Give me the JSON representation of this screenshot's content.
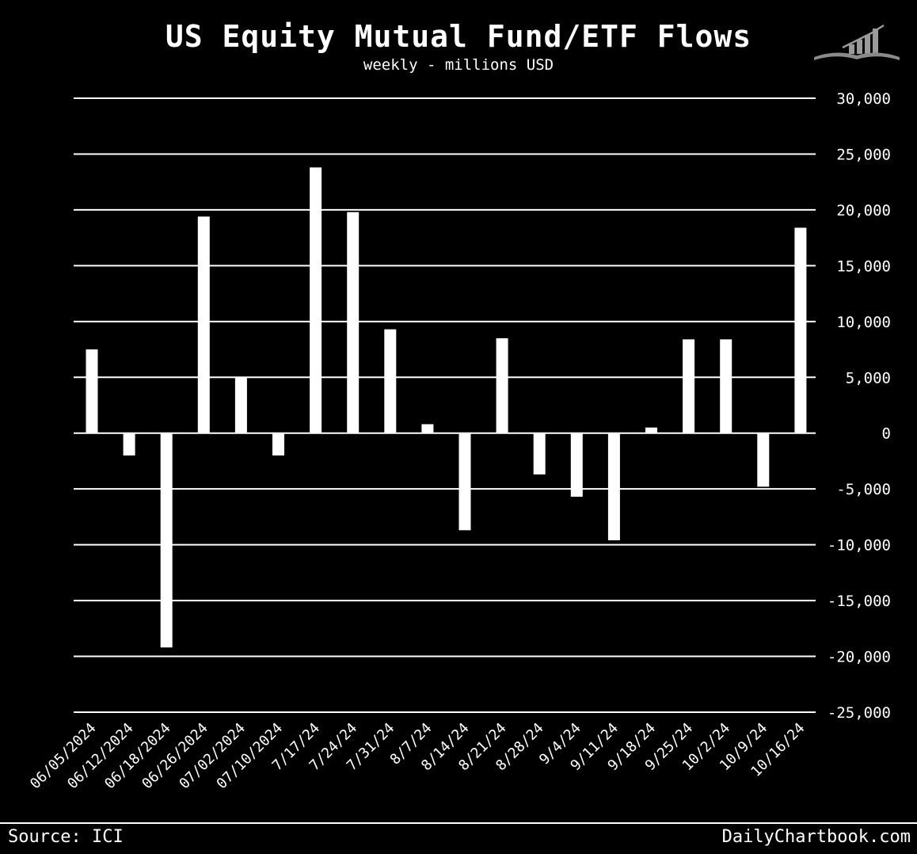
{
  "header": {
    "title": "US Equity Mutual Fund/ETF Flows",
    "subtitle": "weekly - millions USD"
  },
  "footer": {
    "source": "Source: ICI",
    "brand": "DailyChartbook.com"
  },
  "logo_icon": "bar-chart-book-icon",
  "colors": {
    "background": "#000000",
    "bars": "#ffffff",
    "grid": "#ffffff",
    "text": "#ffffff"
  },
  "chart_data": {
    "type": "bar",
    "title": "US Equity Mutual Fund/ETF Flows",
    "subtitle": "weekly - millions USD",
    "categories": [
      "06/05/2024",
      "06/12/2024",
      "06/18/2024",
      "06/26/2024",
      "07/02/2024",
      "07/10/2024",
      "7/17/24",
      "7/24/24",
      "7/31/24",
      "8/7/24",
      "8/14/24",
      "8/21/24",
      "8/28/24",
      "9/4/24",
      "9/11/24",
      "9/18/24",
      "9/25/24",
      "10/2/24",
      "10/9/24",
      "10/16/24"
    ],
    "values": [
      7500,
      -2000,
      -19200,
      19400,
      5000,
      -2000,
      23800,
      19800,
      9300,
      800,
      -8700,
      8500,
      -3700,
      -5700,
      -9600,
      500,
      8400,
      8400,
      -4800,
      18400
    ],
    "ylim": [
      -25000,
      30000
    ],
    "yticks": [
      30000,
      25000,
      20000,
      15000,
      10000,
      5000,
      0,
      -5000,
      -10000,
      -15000,
      -20000,
      -25000
    ],
    "ytick_labels": [
      "30,000",
      "25,000",
      "20,000",
      "15,000",
      "10,000",
      "5,000",
      "0",
      "-5,000",
      "-10,000",
      "-15,000",
      "-20,000",
      "-25,000"
    ],
    "y_axis_side": "right",
    "grid": true,
    "legend": "none"
  }
}
